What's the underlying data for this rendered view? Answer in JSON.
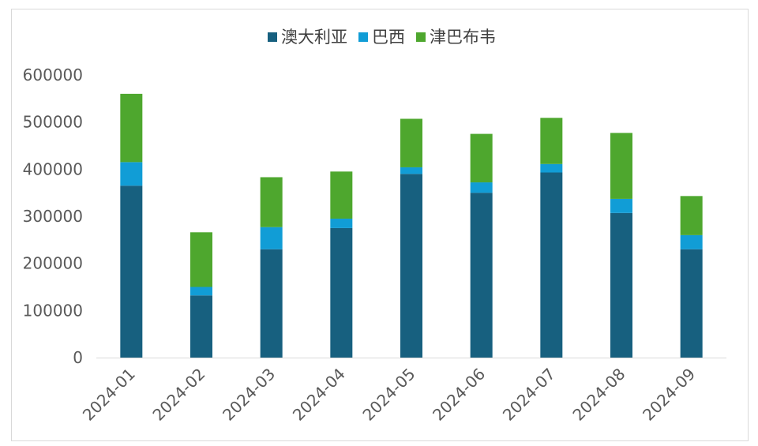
{
  "chart_data": {
    "type": "bar",
    "stacked": true,
    "title": "",
    "xlabel": "",
    "ylabel": "",
    "categories": [
      "2024-01",
      "2024-02",
      "2024-03",
      "2024-04",
      "2024-05",
      "2024-06",
      "2024-07",
      "2024-08",
      "2024-09"
    ],
    "series": [
      {
        "name": "澳大利亚",
        "color": "#17607f",
        "values": [
          365000,
          132000,
          230000,
          275000,
          390000,
          350000,
          393000,
          307000,
          230000
        ]
      },
      {
        "name": "巴西",
        "color": "#119dd6",
        "values": [
          50000,
          18000,
          47000,
          20000,
          14000,
          22000,
          18000,
          30000,
          30000
        ]
      },
      {
        "name": "津巴布韦",
        "color": "#4ea72e",
        "values": [
          145000,
          116000,
          106000,
          100000,
          103000,
          103000,
          98000,
          140000,
          83000
        ]
      }
    ],
    "ylim": [
      0,
      600000
    ],
    "yticks": [
      "0",
      "100000",
      "200000",
      "300000",
      "400000",
      "500000",
      "600000"
    ],
    "ytick_values": [
      0,
      100000,
      200000,
      300000,
      400000,
      500000,
      600000
    ],
    "grid": false,
    "legend_position": "top-center",
    "x_tick_rotation": -45
  }
}
